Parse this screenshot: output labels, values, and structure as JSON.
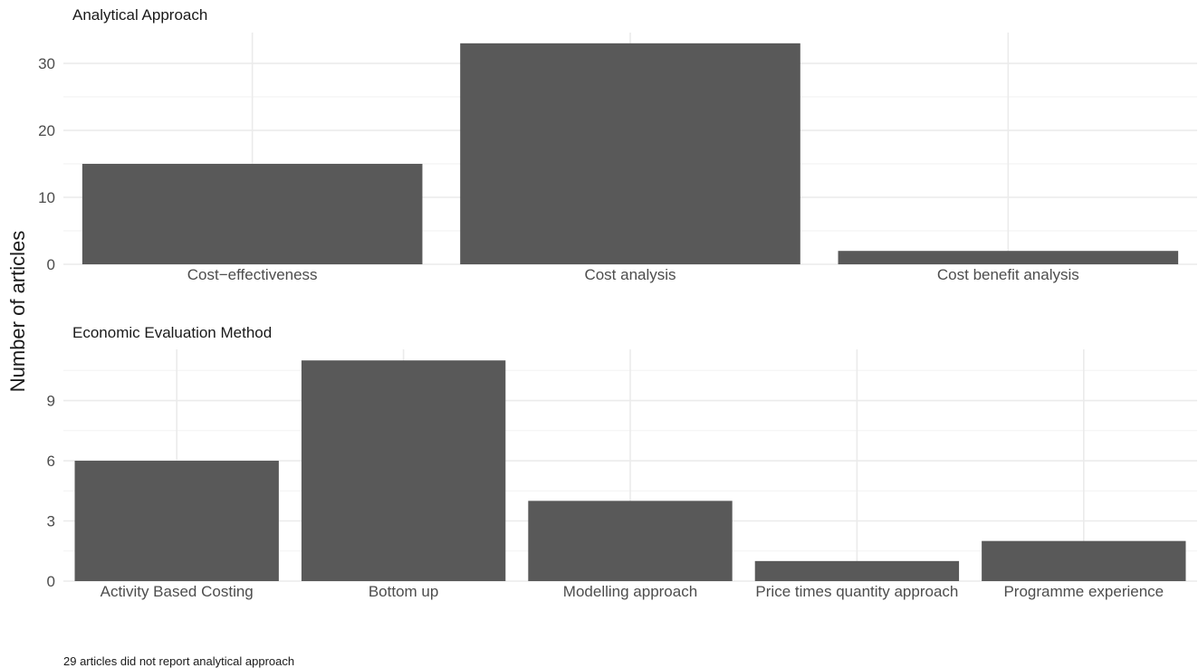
{
  "chart_data": [
    {
      "type": "bar",
      "title": "Analytical Approach",
      "categories": [
        "Cost−effectiveness",
        "Cost analysis",
        "Cost benefit analysis"
      ],
      "values": [
        15,
        33,
        2
      ],
      "ylim": [
        0,
        34.6
      ],
      "yticks": [
        0,
        10,
        20,
        30
      ],
      "grid": true
    },
    {
      "type": "bar",
      "title": "Economic Evaluation Method",
      "categories": [
        "Activity Based Costing",
        "Bottom up",
        "Modelling approach",
        "Price times quantity approach",
        "Programme experience"
      ],
      "values": [
        6,
        11,
        4,
        1,
        2
      ],
      "ylim": [
        0,
        11.55
      ],
      "yticks": [
        0,
        3,
        6,
        9
      ],
      "grid": true
    }
  ],
  "ylabel": "Number of articles",
  "caption": "29 articles did not report analytical approach"
}
